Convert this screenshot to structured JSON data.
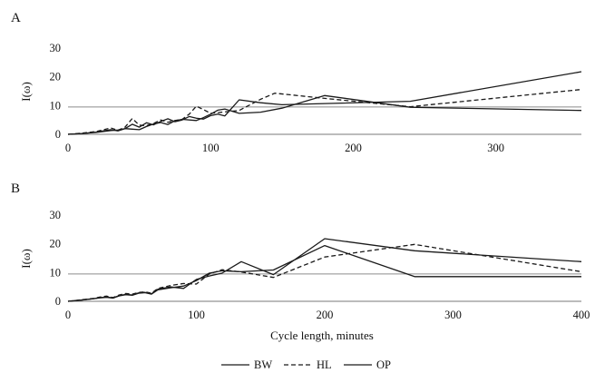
{
  "chart_data": [
    {
      "panel_label": "A",
      "type": "line",
      "ylabel": "I(ω)",
      "xlabel": "",
      "xlim": [
        0,
        360
      ],
      "ylim": [
        0,
        30
      ],
      "xticks": [
        0,
        100,
        200,
        300
      ],
      "yticks": [
        0,
        10,
        20,
        30
      ],
      "reference_line": 9.5,
      "series": [
        {
          "name": "BW",
          "style": "solid",
          "x": [
            0,
            10,
            20,
            25,
            30,
            35,
            40,
            45,
            50,
            55,
            60,
            65,
            70,
            75,
            80,
            85,
            90,
            95,
            100,
            105,
            110,
            120,
            135,
            150,
            180,
            240,
            360
          ],
          "y": [
            0,
            0.3,
            0.8,
            1.2,
            1.6,
            1.2,
            2.0,
            3.5,
            2.5,
            4.0,
            3.3,
            4.5,
            5.4,
            4.4,
            5.0,
            6.2,
            5.6,
            5.3,
            6.5,
            7.0,
            6.4,
            12.0,
            11.0,
            10.3,
            10.7,
            11.5,
            21.8
          ]
        },
        {
          "name": "HL",
          "style": "dashed",
          "x": [
            0,
            10,
            20,
            25,
            30,
            35,
            40,
            45,
            50,
            55,
            60,
            65,
            70,
            75,
            80,
            85,
            90,
            95,
            100,
            110,
            120,
            135,
            145,
            180,
            240,
            360
          ],
          "y": [
            0,
            0.4,
            1.0,
            1.6,
            2.2,
            1.4,
            2.5,
            5.5,
            3.2,
            3.0,
            3.8,
            5.0,
            4.2,
            4.8,
            5.2,
            7.0,
            9.8,
            8.6,
            7.3,
            7.8,
            8.3,
            12.2,
            14.3,
            12.5,
            9.6,
            15.6
          ]
        },
        {
          "name": "OP",
          "style": "solid",
          "x": [
            0,
            10,
            20,
            25,
            30,
            35,
            40,
            45,
            50,
            55,
            60,
            65,
            70,
            75,
            80,
            90,
            95,
            100,
            105,
            110,
            120,
            135,
            150,
            180,
            240,
            360
          ],
          "y": [
            0,
            0.3,
            0.7,
            1.0,
            1.3,
            1.5,
            2.0,
            1.8,
            1.6,
            2.7,
            3.6,
            4.1,
            3.4,
            4.7,
            5.2,
            4.8,
            5.8,
            7.0,
            8.4,
            8.8,
            7.3,
            7.7,
            9.1,
            13.5,
            9.4,
            8.3
          ]
        }
      ]
    },
    {
      "panel_label": "B",
      "type": "line",
      "ylabel": "I(ω)",
      "xlabel": "Cycle length, minutes",
      "xlim": [
        0,
        400
      ],
      "ylim": [
        0,
        30
      ],
      "xticks": [
        0,
        100,
        200,
        300,
        400
      ],
      "yticks": [
        0,
        10,
        20,
        30
      ],
      "reference_line": 9.5,
      "series": [
        {
          "name": "BW",
          "style": "solid",
          "x": [
            0,
            10,
            20,
            25,
            30,
            35,
            40,
            45,
            50,
            55,
            60,
            65,
            70,
            80,
            90,
            100,
            110,
            120,
            135,
            160,
            200,
            270,
            400
          ],
          "y": [
            0,
            0.4,
            0.9,
            1.3,
            1.5,
            1.2,
            2.0,
            2.4,
            2.2,
            2.9,
            3.1,
            2.6,
            4.2,
            5.0,
            4.5,
            7.6,
            8.8,
            9.8,
            13.8,
            9.3,
            21.8,
            17.6,
            13.8
          ]
        },
        {
          "name": "HL",
          "style": "dashed",
          "x": [
            0,
            10,
            20,
            25,
            30,
            35,
            40,
            45,
            50,
            55,
            60,
            65,
            70,
            80,
            90,
            100,
            110,
            120,
            135,
            160,
            200,
            270,
            400
          ],
          "y": [
            0,
            0.5,
            1.0,
            1.5,
            1.8,
            1.3,
            2.2,
            2.7,
            2.5,
            3.1,
            3.3,
            2.8,
            4.5,
            5.5,
            6.2,
            6.0,
            9.5,
            11.0,
            10.2,
            8.3,
            15.4,
            19.8,
            10.3
          ]
        },
        {
          "name": "OP",
          "style": "solid",
          "x": [
            0,
            10,
            20,
            25,
            30,
            35,
            40,
            45,
            50,
            55,
            60,
            65,
            70,
            80,
            90,
            100,
            110,
            120,
            135,
            160,
            200,
            270,
            400
          ],
          "y": [
            0,
            0.4,
            0.9,
            1.2,
            1.4,
            1.1,
            1.9,
            2.3,
            2.1,
            2.8,
            3.0,
            2.5,
            4.0,
            4.7,
            5.3,
            7.2,
            9.8,
            10.6,
            10.3,
            10.9,
            19.4,
            8.6,
            8.6
          ]
        }
      ]
    }
  ],
  "legend": {
    "placement": "bottom-center",
    "items": [
      {
        "name": "BW",
        "style": "solid"
      },
      {
        "name": "HL",
        "style": "dashed"
      },
      {
        "name": "OP",
        "style": "solid"
      }
    ]
  },
  "colors": {
    "series": "#1a1a1a",
    "reference_line": "#8c8c8c",
    "axis": "#7a7a7a"
  }
}
